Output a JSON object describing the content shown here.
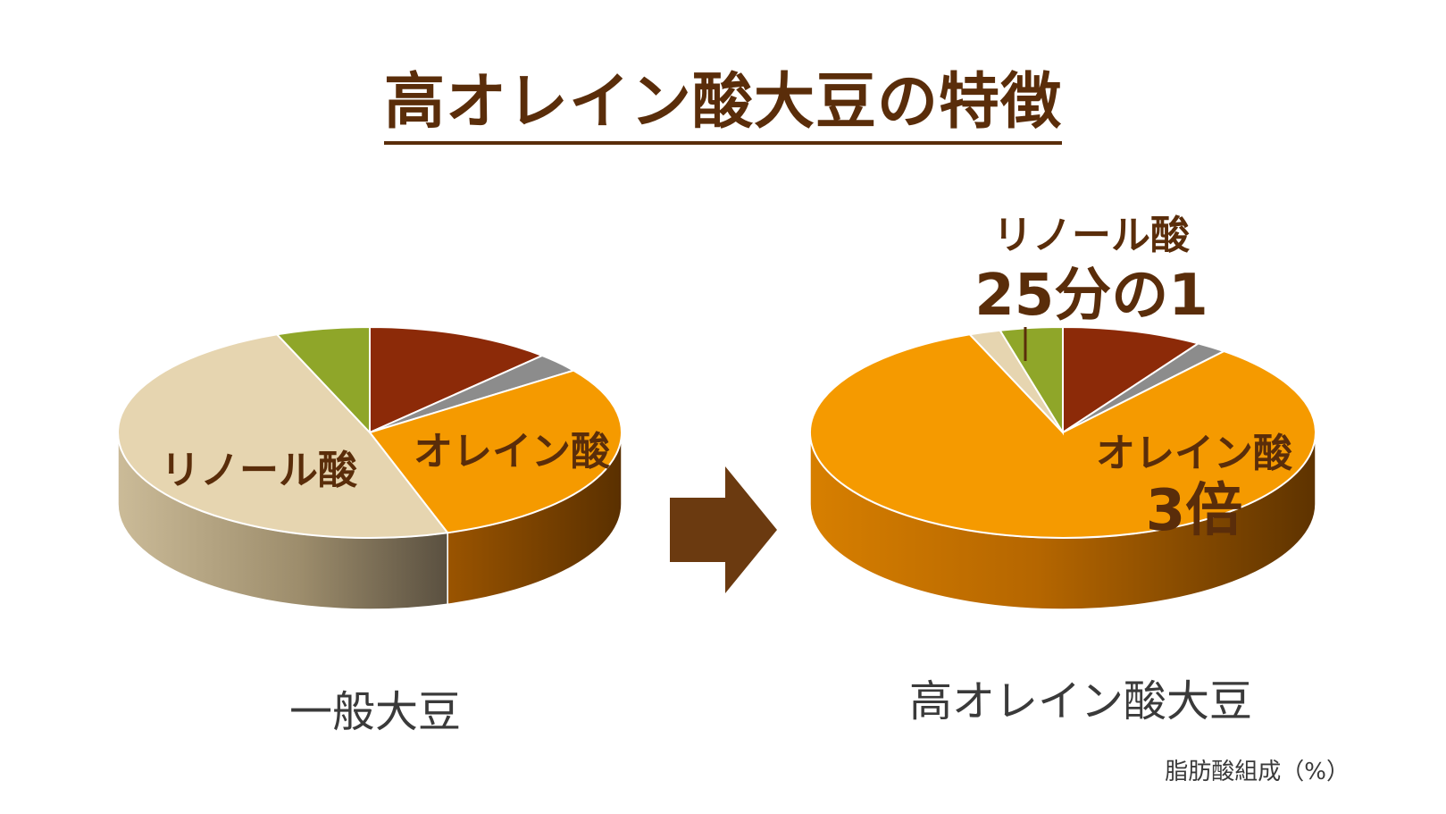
{
  "title": "高オレイン酸大豆の特徴",
  "footnote": "脂肪酸組成（%）",
  "colors": {
    "title": "#5a2d0a",
    "label_dark": "#5a2d0a",
    "orange": "#f59a00",
    "beige": "#e6d5b0",
    "green": "#8fa629",
    "red_brown": "#8c2a08",
    "gray": "#8c8c8c",
    "arrow": "#6b3a10"
  },
  "arrow_icon": "right-arrow-icon",
  "chart_data": [
    {
      "type": "pie",
      "caption": "一般大豆",
      "slices": [
        {
          "name": "",
          "value": 12,
          "color": "#8c2a08"
        },
        {
          "name": "",
          "value": 3,
          "color": "#8c8c8c"
        },
        {
          "name": "オレイン酸",
          "value": 30,
          "color": "#f59a00"
        },
        {
          "name": "リノール酸",
          "value": 49,
          "color": "#e6d5b0"
        },
        {
          "name": "",
          "value": 6,
          "color": "#8fa629"
        }
      ],
      "labels": {
        "linoleic": "リノール酸",
        "oleic": "オレイン酸"
      }
    },
    {
      "type": "pie",
      "caption": "高オレイン酸大豆",
      "slices": [
        {
          "name": "",
          "value": 9,
          "color": "#8c2a08"
        },
        {
          "name": "",
          "value": 2,
          "color": "#8c8c8c"
        },
        {
          "name": "オレイン酸",
          "value": 83,
          "color": "#f59a00"
        },
        {
          "name": "リノール酸",
          "value": 2,
          "color": "#e6d5b0"
        },
        {
          "name": "",
          "value": 4,
          "color": "#8fa629"
        }
      ],
      "labels": {
        "linoleic": "リノール酸",
        "linoleic_ratio": "25分の1",
        "oleic": "オレイン酸",
        "oleic_ratio": "3倍"
      }
    }
  ]
}
